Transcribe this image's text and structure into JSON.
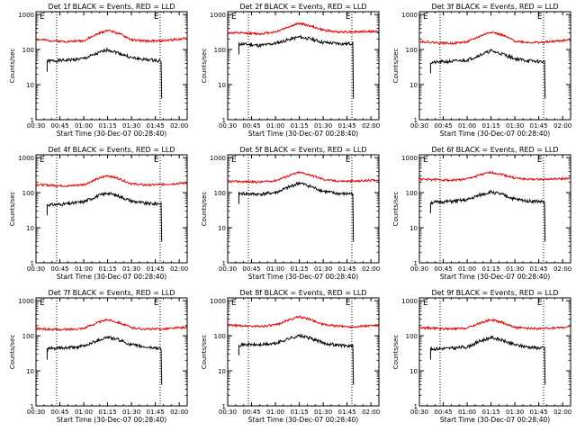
{
  "figure": {
    "background": "#ffffff",
    "foreground": "#000000",
    "events_color": "#000000",
    "lld_color": "#e00000"
  },
  "chart_data": [
    {
      "type": "line",
      "title": "Det 1f BLACK = Events, RED = LLD",
      "xlabel": "Start Time (30-Dec-07 00:28:40)",
      "ylabel": "Counts/sec",
      "x_ticks": [
        "00:30",
        "00:45",
        "01:00",
        "01:15",
        "01:30",
        "01:45",
        "02:00"
      ],
      "y_ticks": [
        "1",
        "10",
        "100",
        "1000"
      ],
      "y_scale": "log",
      "ylim": [
        1,
        1200
      ],
      "marker_labels": [
        "E",
        "E"
      ],
      "dotted_lines_at": [
        "00:43",
        "01:48"
      ],
      "series": [
        {
          "name": "Events",
          "color": "#000000",
          "x": [
            "00:37",
            "00:43",
            "00:50",
            "01:00",
            "01:08",
            "01:15",
            "01:22",
            "01:30",
            "01:38",
            "01:44",
            "01:49"
          ],
          "y": [
            47,
            48,
            50,
            55,
            75,
            100,
            80,
            58,
            52,
            50,
            47
          ]
        },
        {
          "name": "LLD",
          "color": "#e00000",
          "x": [
            "00:30",
            "00:43",
            "00:50",
            "01:00",
            "01:08",
            "01:15",
            "01:22",
            "01:30",
            "01:38",
            "01:48",
            "02:05"
          ],
          "y": [
            195,
            175,
            170,
            180,
            270,
            360,
            290,
            190,
            175,
            175,
            210
          ]
        }
      ]
    },
    {
      "type": "line",
      "title": "Det 2f BLACK = Events, RED = LLD",
      "xlabel": "Start Time (30-Dec-07 00:28:40)",
      "ylabel": "Counts/sec",
      "x_ticks": [
        "00:30",
        "00:45",
        "01:00",
        "01:15",
        "01:30",
        "01:45",
        "02:00"
      ],
      "y_ticks": [
        "1",
        "10",
        "100",
        "1000"
      ],
      "y_scale": "log",
      "ylim": [
        1,
        1200
      ],
      "marker_labels": [
        "E",
        "E"
      ],
      "dotted_lines_at": [
        "00:43",
        "01:48"
      ],
      "series": [
        {
          "name": "Events",
          "color": "#000000",
          "x": [
            "00:37",
            "00:43",
            "00:50",
            "01:00",
            "01:08",
            "01:15",
            "01:22",
            "01:30",
            "01:38",
            "01:44",
            "01:49"
          ],
          "y": [
            145,
            140,
            130,
            150,
            190,
            230,
            200,
            160,
            150,
            145,
            150
          ]
        },
        {
          "name": "LLD",
          "color": "#e00000",
          "x": [
            "00:30",
            "00:43",
            "00:50",
            "01:00",
            "01:08",
            "01:15",
            "01:22",
            "01:30",
            "01:38",
            "01:48",
            "02:05"
          ],
          "y": [
            300,
            290,
            280,
            320,
            440,
            560,
            470,
            360,
            320,
            320,
            330
          ]
        }
      ]
    },
    {
      "type": "line",
      "title": "Det 3f BLACK = Events, RED = LLD",
      "xlabel": "Start Time (30-Dec-07 00:28:40)",
      "ylabel": "Counts/sec",
      "x_ticks": [
        "00:30",
        "00:45",
        "01:00",
        "01:15",
        "01:30",
        "01:45",
        "02:00"
      ],
      "y_ticks": [
        "1",
        "10",
        "100",
        "1000"
      ],
      "y_scale": "log",
      "ylim": [
        1,
        1200
      ],
      "marker_labels": [
        "E",
        "E"
      ],
      "dotted_lines_at": [
        "00:43",
        "01:48"
      ],
      "series": [
        {
          "name": "Events",
          "color": "#000000",
          "x": [
            "00:37",
            "00:43",
            "00:50",
            "01:00",
            "01:08",
            "01:15",
            "01:22",
            "01:30",
            "01:38",
            "01:44",
            "01:49"
          ],
          "y": [
            42,
            44,
            46,
            50,
            70,
            92,
            75,
            55,
            48,
            46,
            45
          ]
        },
        {
          "name": "LLD",
          "color": "#e00000",
          "x": [
            "00:30",
            "00:43",
            "00:50",
            "01:00",
            "01:08",
            "01:15",
            "01:22",
            "01:30",
            "01:38",
            "01:48",
            "02:05"
          ],
          "y": [
            170,
            155,
            150,
            165,
            240,
            320,
            260,
            175,
            160,
            160,
            190
          ]
        }
      ]
    },
    {
      "type": "line",
      "title": "Det 4f BLACK = Events, RED = LLD",
      "xlabel": "Start Time (30-Dec-07 00:28:40)",
      "ylabel": "Counts/sec",
      "x_ticks": [
        "00:30",
        "00:45",
        "01:00",
        "01:15",
        "01:30",
        "01:45",
        "02:00"
      ],
      "y_ticks": [
        "1",
        "10",
        "100",
        "1000"
      ],
      "y_scale": "log",
      "ylim": [
        1,
        1200
      ],
      "marker_labels": [
        "E",
        "E"
      ],
      "dotted_lines_at": [
        "00:43",
        "01:48"
      ],
      "series": [
        {
          "name": "Events",
          "color": "#000000",
          "x": [
            "00:37",
            "00:43",
            "00:50",
            "01:00",
            "01:08",
            "01:15",
            "01:22",
            "01:30",
            "01:38",
            "01:44",
            "01:49"
          ],
          "y": [
            45,
            46,
            48,
            55,
            78,
            98,
            80,
            58,
            50,
            48,
            50
          ]
        },
        {
          "name": "LLD",
          "color": "#e00000",
          "x": [
            "00:30",
            "00:43",
            "00:50",
            "01:00",
            "01:08",
            "01:15",
            "01:22",
            "01:30",
            "01:38",
            "01:48",
            "02:05"
          ],
          "y": [
            170,
            160,
            155,
            170,
            240,
            310,
            250,
            180,
            165,
            170,
            190
          ]
        }
      ]
    },
    {
      "type": "line",
      "title": "Det 5f BLACK = Events, RED = LLD",
      "xlabel": "Start Time (30-Dec-07 00:28:40)",
      "ylabel": "Counts/sec",
      "x_ticks": [
        "00:30",
        "00:45",
        "01:00",
        "01:15",
        "01:30",
        "01:45",
        "02:00"
      ],
      "y_ticks": [
        "1",
        "10",
        "100",
        "1000"
      ],
      "y_scale": "log",
      "ylim": [
        1,
        1200
      ],
      "marker_labels": [
        "E",
        "E"
      ],
      "dotted_lines_at": [
        "00:43",
        "01:48"
      ],
      "series": [
        {
          "name": "Events",
          "color": "#000000",
          "x": [
            "00:37",
            "00:43",
            "00:50",
            "01:00",
            "01:08",
            "01:15",
            "01:22",
            "01:30",
            "01:38",
            "01:44",
            "01:49"
          ],
          "y": [
            95,
            92,
            90,
            100,
            140,
            190,
            150,
            110,
            95,
            92,
            95
          ]
        },
        {
          "name": "LLD",
          "color": "#e00000",
          "x": [
            "00:30",
            "00:43",
            "00:50",
            "01:00",
            "01:08",
            "01:15",
            "01:22",
            "01:30",
            "01:38",
            "01:48",
            "02:05"
          ],
          "y": [
            210,
            205,
            200,
            220,
            300,
            380,
            320,
            240,
            215,
            210,
            230
          ]
        }
      ]
    },
    {
      "type": "line",
      "title": "Det 6f BLACK = Events, RED = LLD",
      "xlabel": "Start Time (30-Dec-07 00:28:40)",
      "ylabel": "Counts/sec",
      "x_ticks": [
        "00:30",
        "00:45",
        "01:00",
        "01:15",
        "01:30",
        "01:45",
        "02:00"
      ],
      "y_ticks": [
        "1",
        "10",
        "100",
        "1000"
      ],
      "y_scale": "log",
      "ylim": [
        1,
        1200
      ],
      "marker_labels": [
        "E",
        "E"
      ],
      "dotted_lines_at": [
        "00:43",
        "01:48"
      ],
      "series": [
        {
          "name": "Events",
          "color": "#000000",
          "x": [
            "00:37",
            "00:43",
            "00:50",
            "01:00",
            "01:08",
            "01:15",
            "01:22",
            "01:30",
            "01:38",
            "01:44",
            "01:49"
          ],
          "y": [
            52,
            54,
            56,
            62,
            85,
            105,
            88,
            65,
            58,
            56,
            55
          ]
        },
        {
          "name": "LLD",
          "color": "#e00000",
          "x": [
            "00:30",
            "00:43",
            "00:50",
            "01:00",
            "01:08",
            "01:15",
            "01:22",
            "01:30",
            "01:38",
            "01:48",
            "02:05"
          ],
          "y": [
            240,
            235,
            225,
            245,
            320,
            380,
            330,
            260,
            240,
            240,
            250
          ]
        }
      ]
    },
    {
      "type": "line",
      "title": "Det 7f BLACK = Events, RED = LLD",
      "xlabel": "Start Time (30-Dec-07 00:28:40)",
      "ylabel": "Counts/sec",
      "x_ticks": [
        "00:30",
        "00:45",
        "01:00",
        "01:15",
        "01:30",
        "01:45",
        "02:00"
      ],
      "y_ticks": [
        "1",
        "10",
        "100",
        "1000"
      ],
      "y_scale": "log",
      "ylim": [
        1,
        1200
      ],
      "marker_labels": [
        "E",
        "E"
      ],
      "dotted_lines_at": [
        "00:43",
        "01:48"
      ],
      "series": [
        {
          "name": "Events",
          "color": "#000000",
          "x": [
            "00:37",
            "00:43",
            "00:50",
            "01:00",
            "01:08",
            "01:15",
            "01:22",
            "01:30",
            "01:38",
            "01:44",
            "01:49"
          ],
          "y": [
            42,
            44,
            45,
            50,
            72,
            92,
            76,
            55,
            48,
            45,
            44
          ]
        },
        {
          "name": "LLD",
          "color": "#e00000",
          "x": [
            "00:30",
            "00:43",
            "00:50",
            "01:00",
            "01:08",
            "01:15",
            "01:22",
            "01:30",
            "01:38",
            "01:48",
            "02:05"
          ],
          "y": [
            160,
            150,
            150,
            165,
            230,
            290,
            240,
            170,
            155,
            155,
            175
          ]
        }
      ]
    },
    {
      "type": "line",
      "title": "Det 8f BLACK = Events, RED = LLD",
      "xlabel": "Start Time (30-Dec-07 00:28:40)",
      "ylabel": "Counts/sec",
      "x_ticks": [
        "00:30",
        "00:45",
        "01:00",
        "01:15",
        "01:30",
        "01:45",
        "02:00"
      ],
      "y_ticks": [
        "1",
        "10",
        "100",
        "1000"
      ],
      "y_scale": "log",
      "ylim": [
        1,
        1200
      ],
      "marker_labels": [
        "E",
        "E"
      ],
      "dotted_lines_at": [
        "00:43",
        "01:48"
      ],
      "series": [
        {
          "name": "Events",
          "color": "#000000",
          "x": [
            "00:37",
            "00:43",
            "00:50",
            "01:00",
            "01:08",
            "01:15",
            "01:22",
            "01:30",
            "01:38",
            "01:44",
            "01:49"
          ],
          "y": [
            55,
            56,
            55,
            60,
            82,
            100,
            85,
            62,
            55,
            52,
            50
          ]
        },
        {
          "name": "LLD",
          "color": "#e00000",
          "x": [
            "00:30",
            "00:43",
            "00:50",
            "01:00",
            "01:08",
            "01:15",
            "01:22",
            "01:30",
            "01:38",
            "01:48",
            "02:05"
          ],
          "y": [
            200,
            190,
            185,
            200,
            280,
            350,
            290,
            210,
            190,
            180,
            200
          ]
        }
      ]
    },
    {
      "type": "line",
      "title": "Det 9f BLACK = Events, RED = LLD",
      "xlabel": "Start Time (30-Dec-07 00:28:40)",
      "ylabel": "Counts/sec",
      "x_ticks": [
        "00:30",
        "00:45",
        "01:00",
        "01:15",
        "01:30",
        "01:45",
        "02:00"
      ],
      "y_ticks": [
        "1",
        "10",
        "100",
        "1000"
      ],
      "y_scale": "log",
      "ylim": [
        1,
        1200
      ],
      "marker_labels": [
        "E",
        "E"
      ],
      "dotted_lines_at": [
        "00:43",
        "01:48"
      ],
      "series": [
        {
          "name": "Events",
          "color": "#000000",
          "x": [
            "00:37",
            "00:43",
            "00:50",
            "01:00",
            "01:08",
            "01:15",
            "01:22",
            "01:30",
            "01:38",
            "01:44",
            "01:49"
          ],
          "y": [
            42,
            43,
            44,
            48,
            70,
            90,
            74,
            55,
            48,
            45,
            45
          ]
        },
        {
          "name": "LLD",
          "color": "#e00000",
          "x": [
            "00:30",
            "00:43",
            "00:50",
            "01:00",
            "01:08",
            "01:15",
            "01:22",
            "01:30",
            "01:38",
            "01:48",
            "02:05"
          ],
          "y": [
            170,
            160,
            155,
            165,
            230,
            290,
            240,
            175,
            160,
            160,
            180
          ]
        }
      ]
    }
  ]
}
